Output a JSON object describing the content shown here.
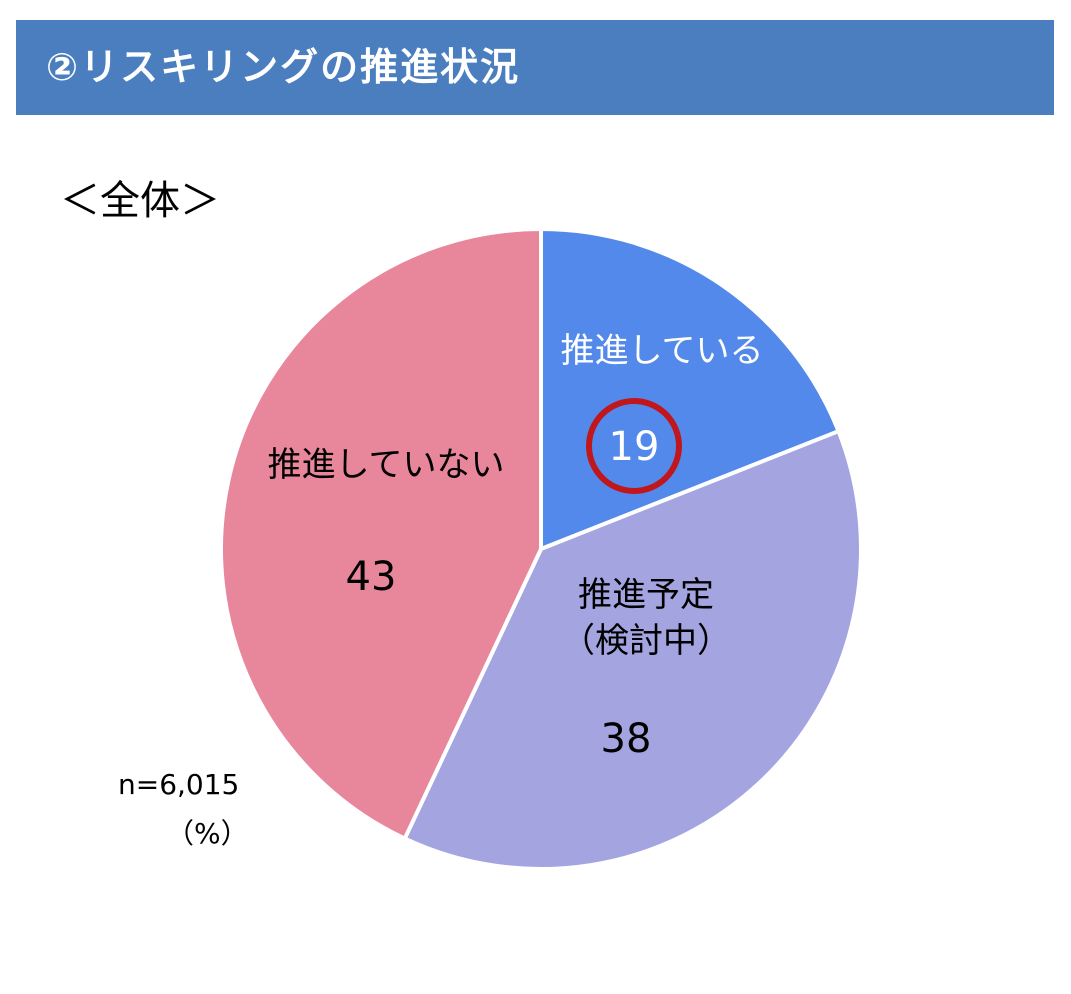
{
  "header": {
    "title": "②リスキリングの推進状況"
  },
  "subtitle": "＜全体＞",
  "note": {
    "sample": "n=6,015",
    "unit": "（%）"
  },
  "colors": {
    "header": "#4a7ebf",
    "highlight_circle": "#c0161c"
  },
  "chart_data": {
    "type": "pie",
    "title": "",
    "unit": "%",
    "slices": [
      {
        "label": "推進している",
        "label_lines": [
          "推進している"
        ],
        "value": 19,
        "color": "#5389ea",
        "text_color": "#ffffff",
        "highlighted": true
      },
      {
        "label": "推進予定（検討中）",
        "label_lines": [
          "推進予定",
          "（検討中）"
        ],
        "value": 38,
        "color": "#a4a4e0",
        "text_color": "#000000",
        "highlighted": false
      },
      {
        "label": "推進していない",
        "label_lines": [
          "推進していない"
        ],
        "value": 43,
        "color": "#e8869c",
        "text_color": "#000000",
        "highlighted": false
      }
    ]
  }
}
